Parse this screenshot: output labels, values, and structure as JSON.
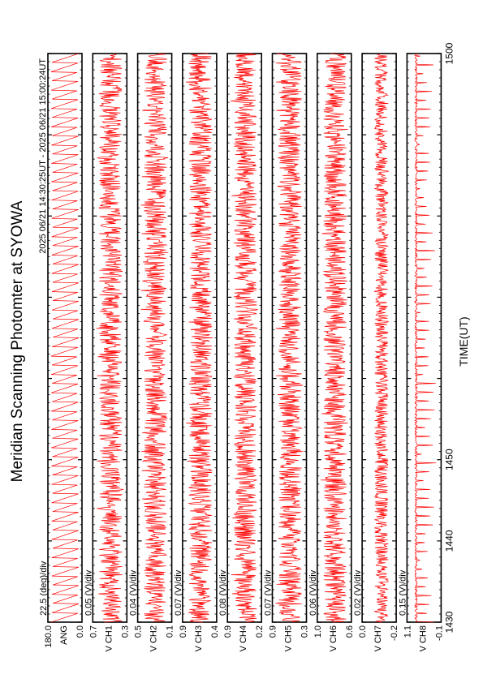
{
  "chart_data": {
    "type": "line",
    "title": "Meridian Scanning Photomter at SYOWA",
    "time_range": "2025 06/21 14:30:25UT - 2025 06/21 15:00:24UT",
    "xlabel": "TIME(UT)",
    "x_ticks": [
      "1430",
      "1440",
      "1450",
      "1500"
    ],
    "x_range": [
      1430,
      1500
    ],
    "orientation": "rotated-90-ccw",
    "trace_color": "#ff0000",
    "panels": [
      {
        "scale": "22.5 (deg)/div",
        "tick_top": "180.0",
        "tick_bottom": "0.0",
        "channel": "ANG",
        "ylim": [
          0.0,
          180.0
        ],
        "pattern": "sawtooth"
      },
      {
        "scale": "0.05 (V)/div",
        "tick_top": "0.7",
        "tick_bottom": "0.3",
        "channel": "V\nCH1",
        "ylim": [
          0.3,
          0.7
        ],
        "pattern": "noise"
      },
      {
        "scale": "0.04 (V)/div",
        "tick_top": "0.5",
        "tick_bottom": "0.1",
        "channel": "V\nCH2",
        "ylim": [
          0.1,
          0.5
        ],
        "pattern": "noise"
      },
      {
        "scale": "0.07 (V)/div",
        "tick_top": "0.9",
        "tick_bottom": "0.4",
        "channel": "V\nCH3",
        "ylim": [
          0.4,
          0.9
        ],
        "pattern": "noise"
      },
      {
        "scale": "0.08 (V)/div",
        "tick_top": "0.9",
        "tick_bottom": "0.2",
        "channel": "V\nCH4",
        "ylim": [
          0.2,
          0.9
        ],
        "pattern": "noise"
      },
      {
        "scale": "0.07 (V)/div",
        "tick_top": "0.9",
        "tick_bottom": "0.3",
        "channel": "V\nCH5",
        "ylim": [
          0.3,
          0.9
        ],
        "pattern": "noise"
      },
      {
        "scale": "0.06 (V)/div",
        "tick_top": "1.0",
        "tick_bottom": "0.6",
        "channel": "V\nCH6",
        "ylim": [
          0.6,
          1.0
        ],
        "pattern": "noise"
      },
      {
        "scale": "0.02 (V)/div",
        "tick_top": "0.0",
        "tick_bottom": "-0.2",
        "channel": "V\nCH7",
        "ylim": [
          -0.2,
          0.0
        ],
        "pattern": "noise-dense"
      },
      {
        "scale": "0.15 (V)/div",
        "tick_top": "1.1",
        "tick_bottom": "-0.1",
        "channel": "V\nCH8",
        "ylim": [
          -0.1,
          1.1
        ],
        "pattern": "spikes"
      }
    ]
  }
}
